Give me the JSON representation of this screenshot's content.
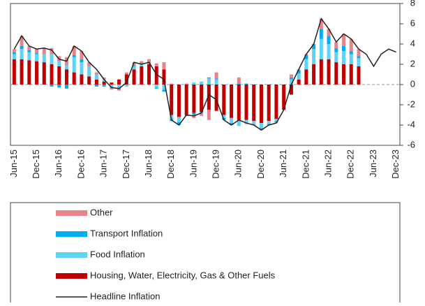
{
  "chart_data": {
    "type": "bar",
    "categories": [
      "Jun-15",
      null,
      null,
      "Dec-15",
      null,
      null,
      "Jun-16",
      null,
      null,
      "Dec-16",
      null,
      null,
      "Jun-17",
      null,
      null,
      "Dec-17",
      null,
      null,
      "Jun-18",
      null,
      null,
      "Dec-18",
      null,
      null,
      "Jun-19",
      null,
      null,
      "Dec-19",
      null,
      null,
      "Jun-20",
      null,
      null,
      "Dec-20",
      null,
      null,
      "Jun-21",
      null,
      null,
      "Dec-21",
      null,
      null,
      "Jun-22",
      null,
      null,
      "Dec-22",
      null,
      null,
      "Jun-23",
      null,
      null,
      "Dec-23"
    ],
    "series": [
      {
        "name": "Housing, Water, Electricity, Gas & Other Fuels",
        "color": "#c00000",
        "values": [
          2.5,
          2.5,
          2.4,
          2.3,
          2.2,
          2.0,
          1.8,
          1.5,
          1.2,
          1.0,
          0.8,
          0.5,
          0.3,
          0.2,
          0.5,
          1.0,
          1.5,
          1.8,
          2.0,
          1.8,
          1.5,
          -3.0,
          -3.2,
          -3.0,
          -2.8,
          -2.7,
          -2.5,
          -2.6,
          -3.0,
          -3.3,
          -3.5,
          -3.5,
          -3.6,
          -3.8,
          -3.6,
          -3.4,
          -2.5,
          -1.0,
          0.5,
          1.5,
          2.0,
          2.5,
          2.5,
          2.2,
          2.0,
          2.0,
          1.8,
          null,
          null,
          null,
          null,
          null
        ]
      },
      {
        "name": "Food Inflation",
        "color": "#5fd3f3",
        "values": [
          0.5,
          1.0,
          0.8,
          0.7,
          0.8,
          1.0,
          0.5,
          0.4,
          1.5,
          1.2,
          1.0,
          0.5,
          0.2,
          -0.2,
          -0.3,
          -0.2,
          0.3,
          0.2,
          0.1,
          -0.3,
          -0.5,
          -0.4,
          -0.5,
          0.0,
          0.2,
          0.3,
          0.6,
          0.5,
          -0.3,
          -0.5,
          -0.6,
          -0.3,
          -0.3,
          -0.5,
          -0.3,
          -0.2,
          0.0,
          0.5,
          0.6,
          1.0,
          1.5,
          2.0,
          1.5,
          1.0,
          1.3,
          1.0,
          0.8,
          null,
          null,
          null,
          null,
          null
        ]
      },
      {
        "name": "Transport Inflation",
        "color": "#00aeef",
        "values": [
          0.2,
          0.3,
          0.2,
          0.1,
          0,
          -0.2,
          -0.3,
          -0.4,
          0.2,
          0.3,
          0,
          -0.2,
          -0.2,
          -0.1,
          -0.1,
          0,
          0.1,
          0.1,
          0.1,
          -0.1,
          -0.2,
          -0.2,
          -0.3,
          -0.1,
          -0.2,
          -0.1,
          0.1,
          0.1,
          -0.2,
          -0.2,
          0.1,
          0.1,
          0,
          -0.1,
          -0.1,
          -0.1,
          0,
          0.2,
          0.3,
          0.4,
          0.5,
          1.0,
          0.8,
          0.4,
          0.5,
          0.3,
          0.2,
          null,
          null,
          null,
          null,
          null
        ]
      },
      {
        "name": "Other",
        "color": "#e8838a",
        "values": [
          0.3,
          1.0,
          0.4,
          0.4,
          0.6,
          0.6,
          0.5,
          0.8,
          0.9,
          0.8,
          0.4,
          0.2,
          0.2,
          -0.2,
          -0.2,
          0.2,
          0.3,
          0.2,
          0.3,
          0.3,
          0.7,
          0.1,
          0,
          0.1,
          -0.3,
          -0.3,
          -1.0,
          0.6,
          0.0,
          0.0,
          0.6,
          -0.1,
          -0.1,
          -0.1,
          0,
          -0.1,
          0,
          0.3,
          0.1,
          0.1,
          0,
          1.0,
          0.7,
          0.6,
          1.2,
          1.2,
          0.7,
          null,
          null,
          null,
          null,
          null
        ]
      },
      {
        "name": "Headline Inflation",
        "type": "line",
        "color": "#222222",
        "values": [
          3.5,
          4.8,
          3.8,
          3.5,
          3.6,
          3.4,
          2.5,
          2.3,
          3.8,
          3.3,
          2.2,
          1.5,
          0.5,
          -0.3,
          -0.4,
          0.2,
          2.2,
          2.0,
          2.2,
          1.0,
          0.5,
          -3.5,
          -4.0,
          -3.0,
          -3.1,
          -2.8,
          -1.0,
          -1.5,
          -3.5,
          -4.0,
          -3.5,
          -3.8,
          -4.0,
          -4.5,
          -4.0,
          -3.8,
          -2.5,
          0,
          1.5,
          3.0,
          4.0,
          6.5,
          5.5,
          4.2,
          5.0,
          4.5,
          3.5,
          3.0,
          1.8,
          3.0,
          3.5,
          3.2
        ]
      }
    ],
    "legend_order": [
      "Other",
      "Transport Inflation",
      "Food Inflation",
      "Housing, Water, Electricity, Gas & Other Fuels",
      "Headline Inflation"
    ],
    "ylim": [
      -6,
      8
    ],
    "yticks": [
      8,
      6,
      4,
      2,
      0,
      -2,
      -4,
      -6
    ],
    "grid": false,
    "stacked": true
  }
}
